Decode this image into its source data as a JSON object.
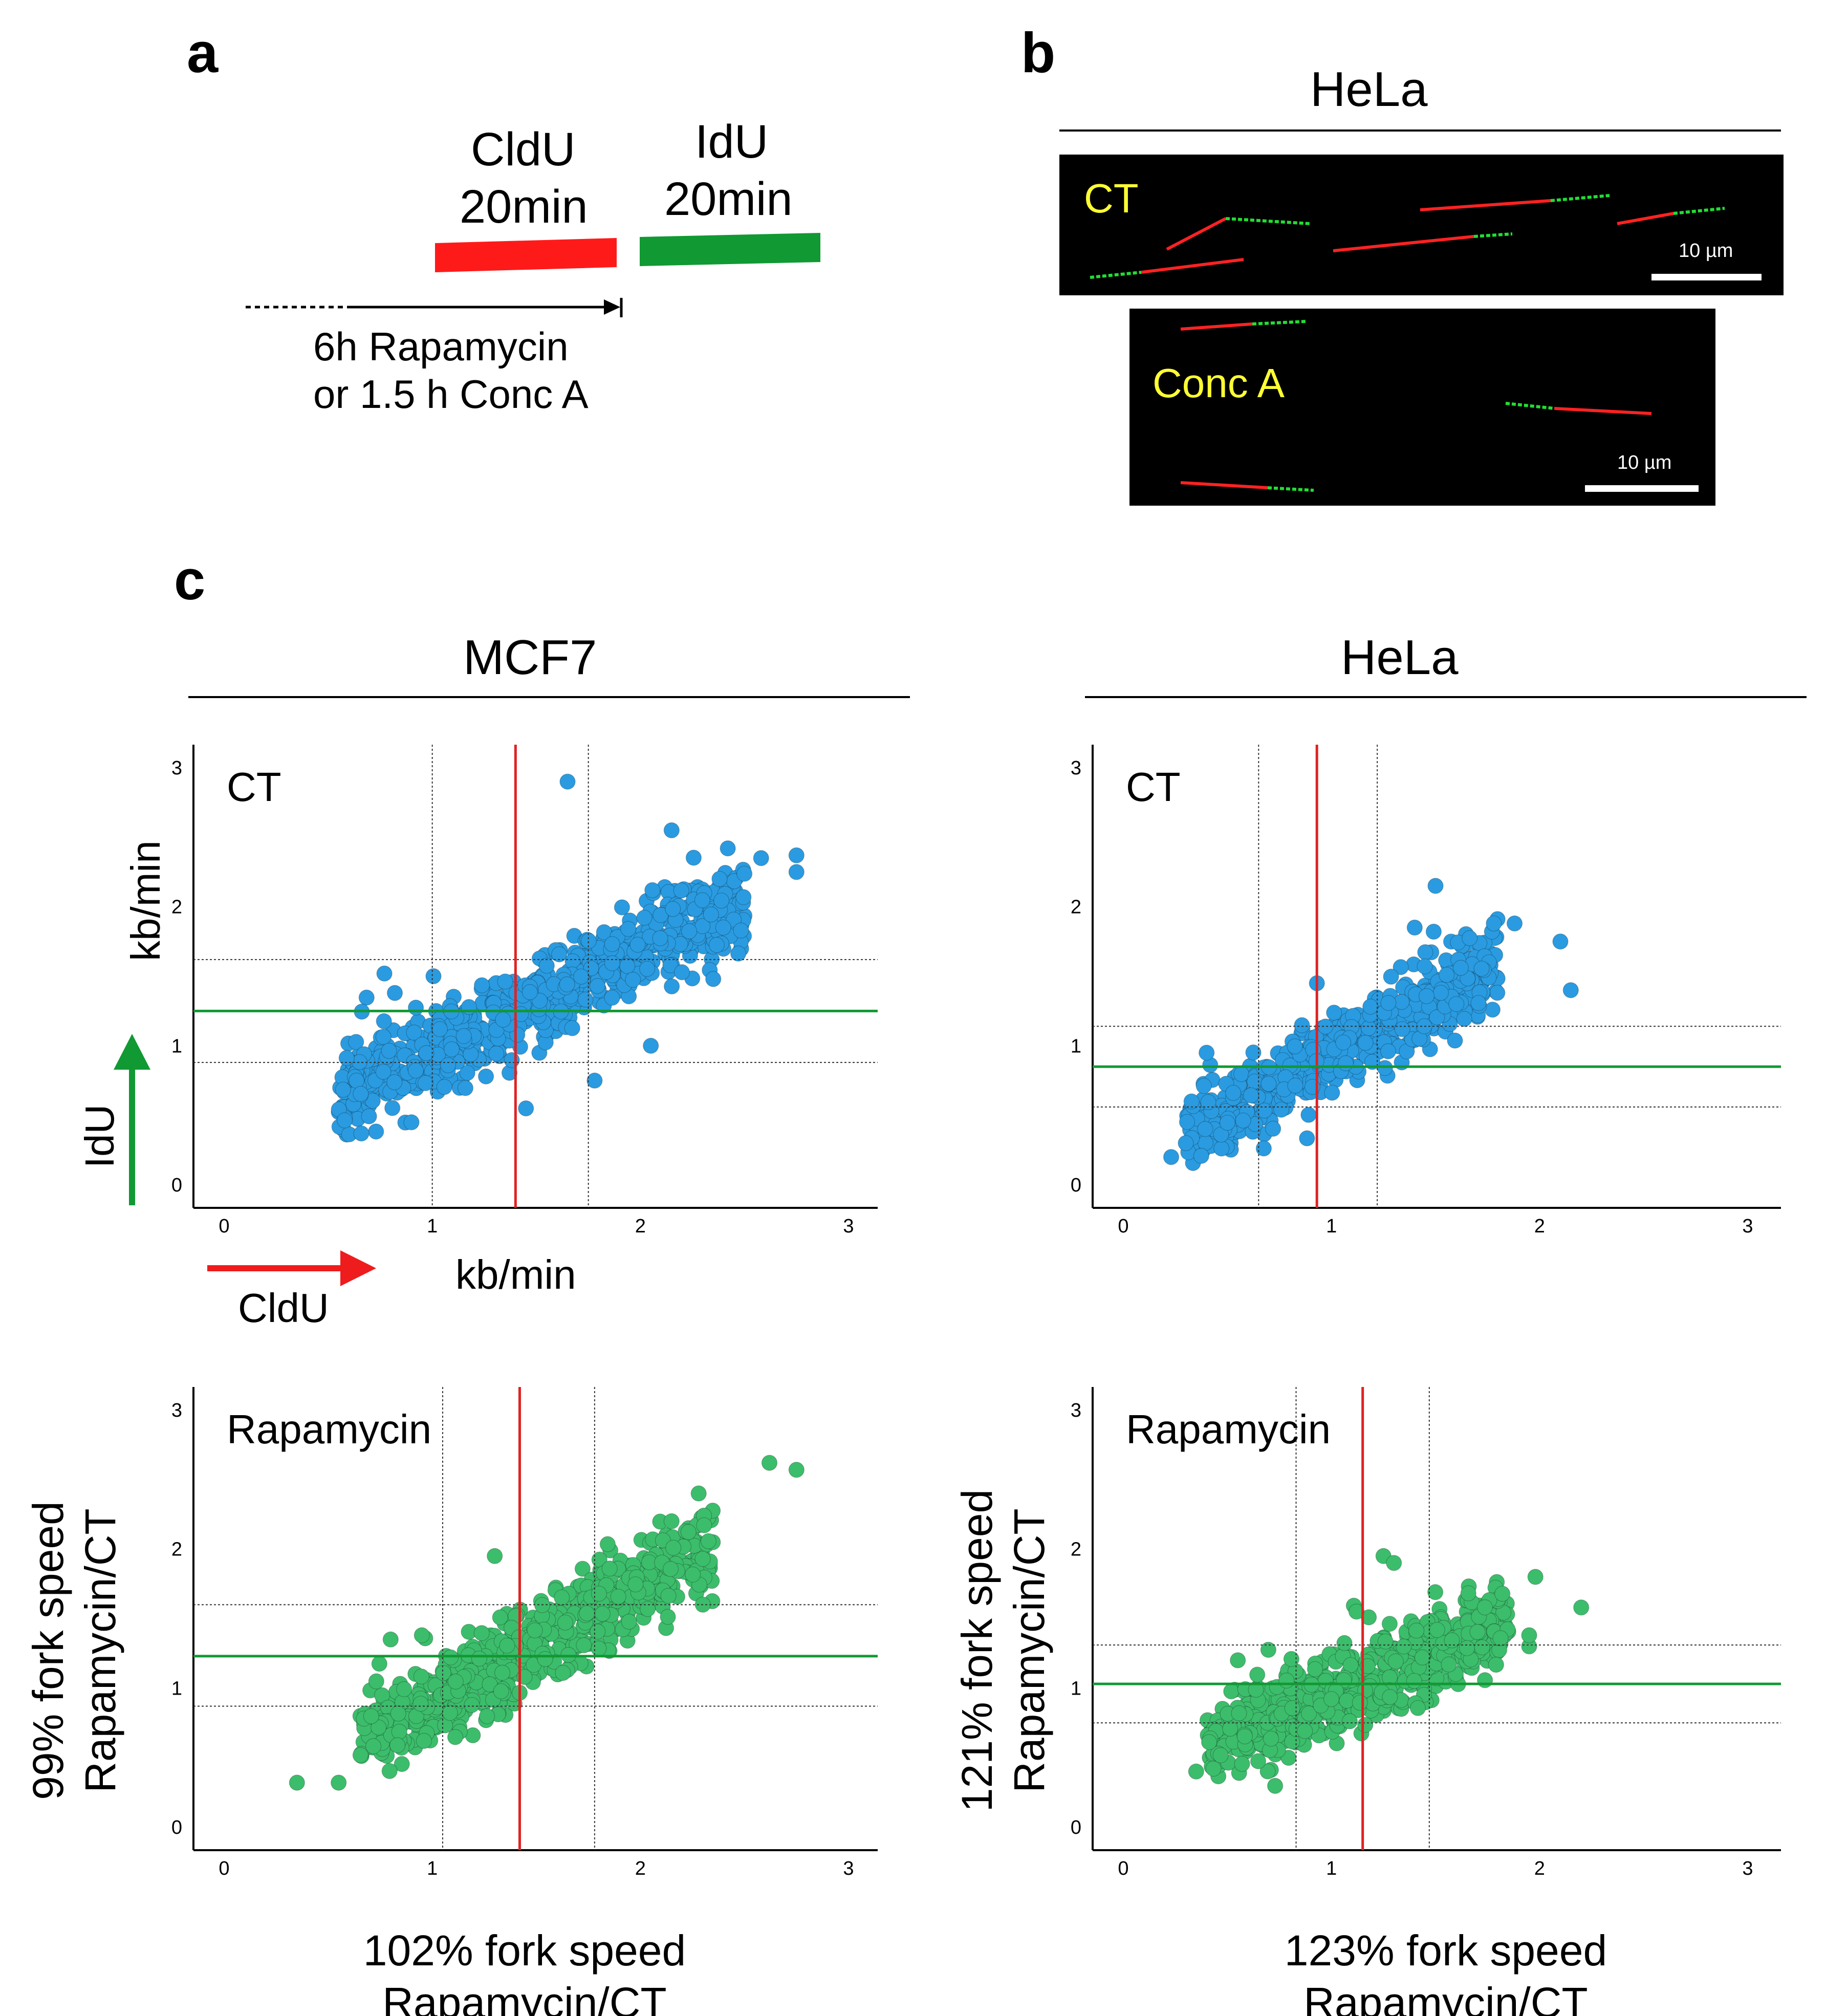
{
  "panels": {
    "a": "a",
    "b": "b",
    "c": "c"
  },
  "panel_a": {
    "cldu_label": "CldU",
    "cldu_time": "20min",
    "idu_label": "IdU",
    "idu_time": "20min",
    "treatment_line1": "6h Rapamycin",
    "treatment_line2": "or 1.5 h Conc A",
    "colors": {
      "cldu": "#ff1a1a",
      "idu": "#119933"
    }
  },
  "panel_b": {
    "title": "HeLa",
    "ct_label": "CT",
    "conc_label": "Conc A",
    "scalebar_ct": "10 µm",
    "scalebar_conc": "10 µm",
    "label_color": "#ffff33"
  },
  "panel_c": {
    "mcf7_title": "MCF7",
    "hela_title": "HeLa",
    "kbmin_y": "kb/min",
    "kbmin_x": "kb/min",
    "idu_arrow_label": "IdU",
    "cldu_arrow_label": "CldU",
    "mcf7_y_caption": [
      "99% fork speed",
      "Rapamycin/CT"
    ],
    "hela_y_caption": [
      "121% fork speed",
      "Rapamycin/CT"
    ],
    "mcf7_x_caption": [
      "102% fork speed",
      "Rapamycin/CT"
    ],
    "hela_x_caption": [
      "123% fork speed",
      "Rapamycin/CT"
    ]
  },
  "chart_data": [
    {
      "id": "mcf7-ct",
      "type": "scatter",
      "title": "CT",
      "xlim": [
        0,
        3
      ],
      "ylim": [
        0,
        3
      ],
      "xticks": [
        "0",
        "1",
        "2",
        "3"
      ],
      "yticks": [
        "0",
        "1",
        "2",
        "3"
      ],
      "point_color": "#2a9be0",
      "mean_x": 1.4,
      "mean_y": 1.25,
      "sd_x": [
        1.0,
        1.75
      ],
      "sd_y": [
        0.88,
        1.62
      ],
      "cluster": {
        "n": 700,
        "x_range": [
          0.55,
          2.5
        ],
        "slope": 0.72,
        "intercept": 0.25,
        "spread": 0.17,
        "seed": 11
      },
      "outliers": [
        [
          1.65,
          2.9
        ],
        [
          2.15,
          2.55
        ],
        [
          2.42,
          2.42
        ],
        [
          2.58,
          2.35
        ],
        [
          2.75,
          2.37
        ],
        [
          2.75,
          2.25
        ],
        [
          2.38,
          2.2
        ],
        [
          0.77,
          1.52
        ],
        [
          0.82,
          1.38
        ],
        [
          1.78,
          0.75
        ],
        [
          1.45,
          0.55
        ],
        [
          2.05,
          1.0
        ],
        [
          0.9,
          0.45
        ],
        [
          2.35,
          1.48
        ]
      ]
    },
    {
      "id": "hela-ct",
      "type": "scatter",
      "title": "CT",
      "xlim": [
        0,
        3
      ],
      "ylim": [
        0,
        3
      ],
      "xticks": [
        "0",
        "1",
        "2",
        "3"
      ],
      "yticks": [
        "0",
        "1",
        "2",
        "3"
      ],
      "point_color": "#2a9be0",
      "mean_x": 0.93,
      "mean_y": 0.85,
      "sd_x": [
        0.65,
        1.22
      ],
      "sd_y": [
        0.56,
        1.14
      ],
      "cluster": {
        "n": 600,
        "x_range": [
          0.3,
          1.8
        ],
        "slope": 0.82,
        "intercept": 0.12,
        "spread": 0.14,
        "seed": 23
      },
      "outliers": [
        [
          1.5,
          2.15
        ],
        [
          1.78,
          1.88
        ],
        [
          1.88,
          1.88
        ],
        [
          2.1,
          1.75
        ],
        [
          2.15,
          1.4
        ],
        [
          1.4,
          1.85
        ],
        [
          0.4,
          0.95
        ],
        [
          0.3,
          0.3
        ],
        [
          0.23,
          0.2
        ],
        [
          0.93,
          1.45
        ],
        [
          1.6,
          1.3
        ]
      ]
    },
    {
      "id": "mcf7-rapamycin",
      "type": "scatter",
      "title": "Rapamycin",
      "xlim": [
        0,
        3
      ],
      "ylim": [
        0,
        3
      ],
      "xticks": [
        "0",
        "1",
        "2",
        "3"
      ],
      "yticks": [
        "0",
        "1",
        "2",
        "3"
      ],
      "point_color": "#3cbd6b",
      "mean_x": 1.42,
      "mean_y": 1.23,
      "sd_x": [
        1.05,
        1.78
      ],
      "sd_y": [
        0.87,
        1.6
      ],
      "cluster": {
        "n": 650,
        "x_range": [
          0.65,
          2.35
        ],
        "slope": 0.82,
        "intercept": 0.08,
        "spread": 0.16,
        "seed": 37
      },
      "outliers": [
        [
          2.62,
          2.62
        ],
        [
          2.75,
          2.57
        ],
        [
          0.35,
          0.32
        ],
        [
          0.55,
          0.32
        ],
        [
          1.3,
          1.95
        ],
        [
          0.8,
          1.35
        ],
        [
          0.95,
          1.38
        ],
        [
          2.3,
          1.6
        ],
        [
          2.15,
          2.2
        ],
        [
          2.28,
          2.4
        ]
      ]
    },
    {
      "id": "hela-rapamycin",
      "type": "scatter",
      "title": "Rapamycin",
      "xlim": [
        0,
        3
      ],
      "ylim": [
        0,
        3
      ],
      "xticks": [
        "0",
        "1",
        "2",
        "3"
      ],
      "yticks": [
        "0",
        "1",
        "2",
        "3"
      ],
      "point_color": "#3cbd6b",
      "mean_x": 1.15,
      "mean_y": 1.03,
      "sd_x": [
        0.83,
        1.47
      ],
      "sd_y": [
        0.75,
        1.31
      ],
      "cluster": {
        "n": 620,
        "x_range": [
          0.4,
          1.85
        ],
        "slope": 0.65,
        "intercept": 0.3,
        "spread": 0.15,
        "seed": 51
      },
      "outliers": [
        [
          1.98,
          1.8
        ],
        [
          2.2,
          1.58
        ],
        [
          1.95,
          1.3
        ],
        [
          1.95,
          1.38
        ],
        [
          0.35,
          0.4
        ],
        [
          0.55,
          1.2
        ],
        [
          1.25,
          1.95
        ],
        [
          1.3,
          1.9
        ],
        [
          1.12,
          1.55
        ]
      ]
    }
  ]
}
